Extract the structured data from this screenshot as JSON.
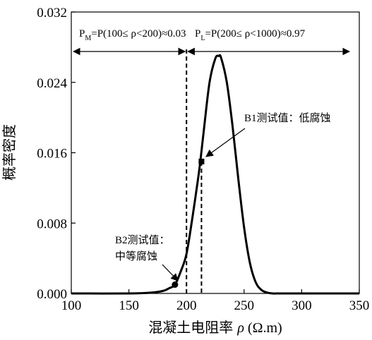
{
  "chart_data": {
    "type": "line",
    "xlabel_cn": "混凝土电阻率",
    "xlabel_symbol": "ρ",
    "xlabel_unit": "(Ω.m)",
    "ylabel": "概率密度",
    "xlim": [
      100,
      350
    ],
    "ylim": [
      0,
      0.032
    ],
    "x_ticks": [
      100,
      150,
      200,
      250,
      300,
      350
    ],
    "y_ticks": [
      "0.000",
      "0.008",
      "0.016",
      "0.024",
      "0.032"
    ],
    "series": [
      {
        "x": [
          100,
          150,
          170,
          180,
          185,
          190,
          195,
          200,
          205,
          210,
          212,
          215,
          220,
          225,
          228,
          230,
          235,
          240,
          245,
          250,
          255,
          260,
          265,
          270,
          275,
          280,
          290,
          300,
          350
        ],
        "y": [
          0,
          0,
          0.0001,
          0.0003,
          0.0006,
          0.001,
          0.0025,
          0.0045,
          0.0085,
          0.013,
          0.015,
          0.0185,
          0.024,
          0.0267,
          0.027,
          0.0268,
          0.024,
          0.019,
          0.013,
          0.0075,
          0.0035,
          0.0013,
          0.0004,
          0.0001,
          0,
          0,
          0,
          0,
          0
        ]
      }
    ],
    "threshold_line": {
      "x": 200
    },
    "b1_line": {
      "x": 213
    },
    "points": [
      {
        "label": "B1测试值：低腐蚀",
        "x": 213,
        "y": 0.015,
        "marker": "square"
      },
      {
        "label_line1": "B2测试值：",
        "label_line2": "中等腐蚀",
        "x": 190,
        "y": 0.001,
        "marker": "circle"
      }
    ],
    "pm_annotation": {
      "prefix": "P",
      "sub": "M",
      "rest": "=P(100≤ ρ<200)≈0.03"
    },
    "pl_annotation": {
      "prefix": "P",
      "sub": "L",
      "rest": "=P(200≤ ρ<1000)≈0.97"
    }
  }
}
